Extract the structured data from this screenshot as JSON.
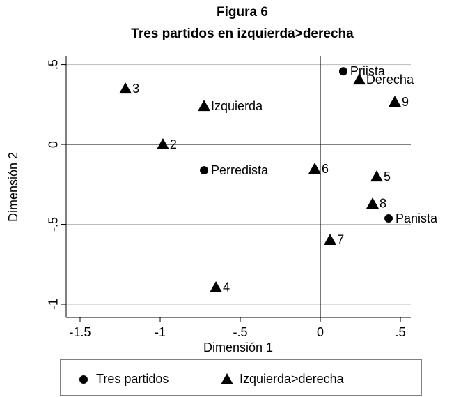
{
  "chart_data": {
    "type": "scatter",
    "title": "Figura 6",
    "subtitle": "Tres partidos en izquierda>derecha",
    "xlabel": "Dimensión 1",
    "ylabel": "Dimensión 2",
    "xlim": [
      -1.587,
      0.565
    ],
    "ylim": [
      -1.083,
      0.555
    ],
    "xticks": [
      -1.5,
      -1,
      {
        "value": -0.5,
        "label": "-.5"
      },
      0,
      {
        "value": 0.5,
        "label": ".5"
      }
    ],
    "yticks": [
      {
        "value": 0.5,
        "label": ".5"
      },
      0,
      {
        "value": -0.5,
        "label": "-.5"
      },
      -1
    ],
    "xline": 0,
    "yline": 0,
    "grid": true,
    "series": [
      {
        "name": "Tres partidos",
        "marker": "circle",
        "color": "#000000",
        "x": [
          0.143,
          -0.726,
          0.426
        ],
        "values": [
          0.458,
          -0.162,
          -0.463
        ],
        "labels": [
          "Priista",
          "Perredista",
          "Panista"
        ]
      },
      {
        "name": "Izquierda>derecha",
        "marker": "triangle",
        "color": "#000000",
        "x": [
          -1.217,
          -0.726,
          -0.983,
          0.243,
          0.465,
          -0.035,
          0.352,
          0.326,
          0.061,
          -0.652
        ],
        "values": [
          0.349,
          0.24,
          0,
          0.406,
          0.266,
          -0.153,
          -0.201,
          -0.371,
          -0.598,
          -0.895
        ],
        "labels": [
          "3",
          "Izquierda",
          "2",
          "Derecha",
          "9",
          "6",
          "5",
          "8",
          "7",
          "4"
        ]
      }
    ]
  }
}
